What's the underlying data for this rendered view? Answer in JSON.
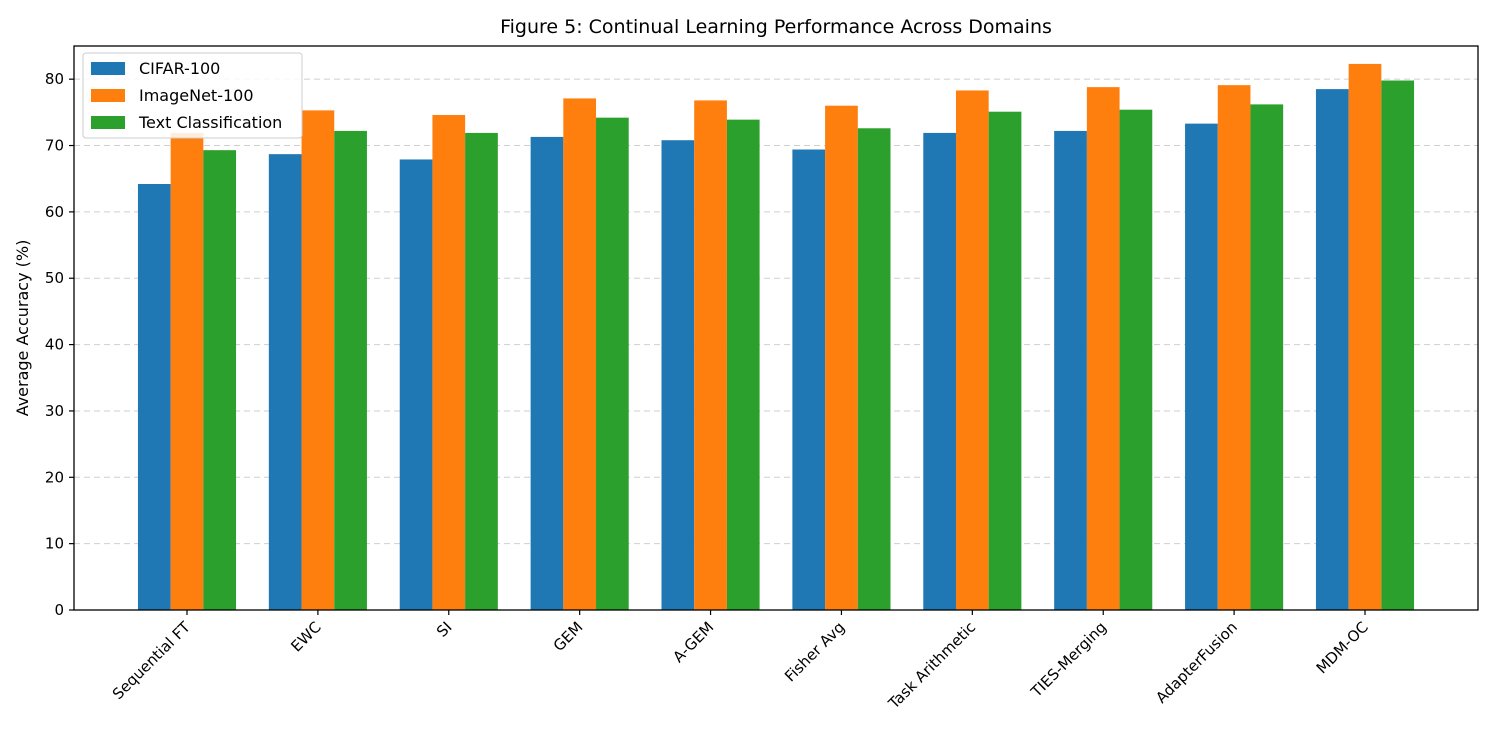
{
  "chart_data": {
    "type": "bar",
    "title": "Figure 5: Continual Learning Performance Across Domains",
    "xlabel": "",
    "ylabel": "Average Accuracy (%)",
    "ylim": [
      0,
      85
    ],
    "yticks": [
      0,
      10,
      20,
      30,
      40,
      50,
      60,
      70,
      80
    ],
    "grid": "y-dashed",
    "legend_position": "top-left",
    "categories": [
      "Sequential FT",
      "EWC",
      "SI",
      "GEM",
      "A-GEM",
      "Fisher Avg",
      "Task Arithmetic",
      "TIES-Merging",
      "AdapterFusion",
      "MDM-OC"
    ],
    "series": [
      {
        "name": "CIFAR-100",
        "color": "#1f77b4",
        "values": [
          64.2,
          68.7,
          67.9,
          71.3,
          70.8,
          69.4,
          71.9,
          72.2,
          73.3,
          78.5
        ]
      },
      {
        "name": "ImageNet-100",
        "color": "#ff7f0e",
        "values": [
          71.9,
          75.3,
          74.6,
          77.1,
          76.8,
          76.0,
          78.3,
          78.8,
          79.1,
          82.3
        ]
      },
      {
        "name": "Text Classification",
        "color": "#2ca02c",
        "values": [
          69.3,
          72.2,
          71.9,
          74.2,
          73.9,
          72.6,
          75.1,
          75.4,
          76.2,
          79.8
        ]
      }
    ]
  }
}
